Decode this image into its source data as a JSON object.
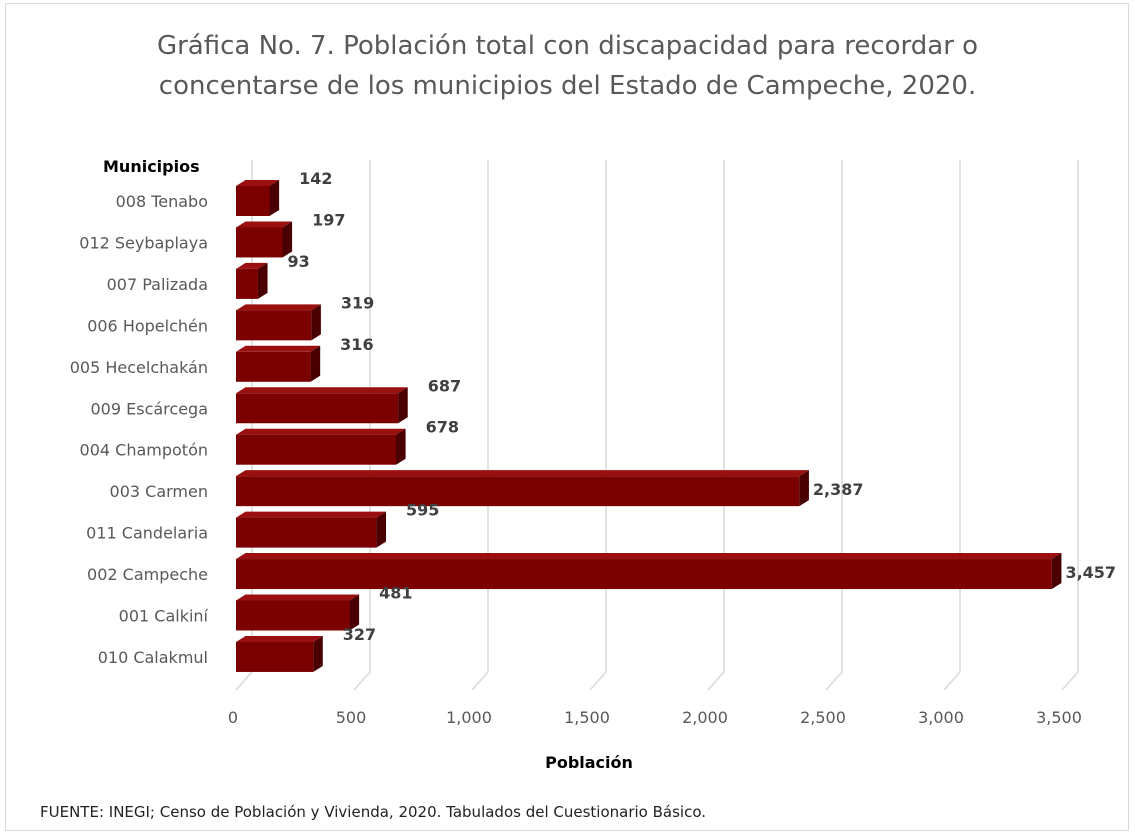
{
  "title_line1": "Gráfica No. 7. Población total con discapacidad para recordar o",
  "title_line2": "concentarse de los municipios del Estado de Campeche, 2020.",
  "source": "FUENTE: INEGI;  Censo de Población y Vivienda, 2020. Tabulados del Cuestionario Básico.",
  "colors": {
    "bar_front": "#7b0000",
    "bar_side": "#4a0000",
    "bar_top": "#9a1010",
    "grid": "#d9d9d9"
  },
  "chart_data": {
    "type": "bar",
    "orientation": "horizontal",
    "style": "3d",
    "categories": [
      "008 Tenabo",
      "012 Seybaplaya",
      "007 Palizada",
      "006 Hopelchén",
      "005 Hecelchakán",
      "009 Escárcega",
      "004 Champotón",
      "003 Carmen",
      "011 Candelaria",
      "002 Campeche",
      "001 Calkiní",
      "010 Calakmul"
    ],
    "values": [
      142,
      197,
      93,
      319,
      316,
      687,
      678,
      2387,
      595,
      3457,
      481,
      327
    ],
    "value_labels": [
      "142",
      "197",
      "93",
      "319",
      "316",
      "687",
      "678",
      "2,387",
      "595",
      "3,457",
      "481",
      "327"
    ],
    "xlim": [
      0,
      3500
    ],
    "x_ticks": [
      0,
      500,
      1000,
      1500,
      2000,
      2500,
      3000,
      3500
    ],
    "x_tick_labels": [
      "0",
      "500",
      "1,000",
      "1,500",
      "2,000",
      "2,500",
      "3,000",
      "3,500"
    ],
    "xlabel": "Población",
    "ylabel": "Municipios",
    "grid": true,
    "legend": false
  }
}
